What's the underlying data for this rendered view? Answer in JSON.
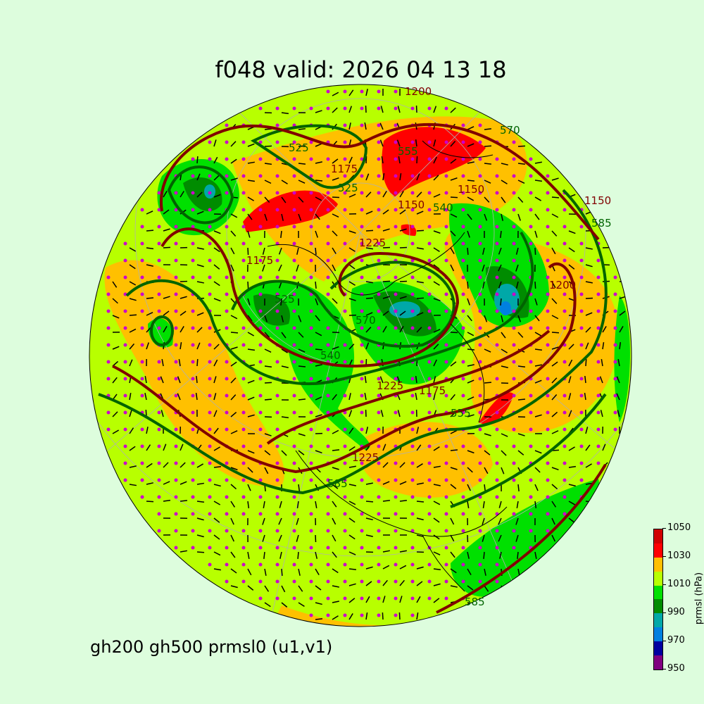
{
  "title": "f048 valid:   2026 04 13 18",
  "subtitle": "gh200 gh500 prmsl0 (u1,v1)",
  "colorbar": {
    "label": "prmsl (hPa)",
    "ticks": [
      "950",
      "970",
      "990",
      "1010",
      "1030",
      "1050"
    ],
    "levels": [
      950,
      960,
      970,
      980,
      990,
      1000,
      1010,
      1020,
      1030,
      1040,
      1050
    ],
    "colors": [
      "#800080",
      "#0000a0",
      "#0080e0",
      "#00a8a8",
      "#008c00",
      "#00e000",
      "#b8ff00",
      "#ffc000",
      "#ff0000",
      "#d00000"
    ]
  },
  "contour_colors": {
    "gh200": "#800000",
    "gh500": "#006400",
    "coastline": "#000000",
    "grid": "#b0b0b0",
    "wind_dots": "#cc00cc"
  },
  "contour_labels": {
    "gh200": [
      "1200",
      "1150",
      "1150",
      "1175",
      "1150",
      "1225",
      "1175",
      "1225",
      "1200",
      "1175",
      "1225"
    ],
    "gh500": [
      "525",
      "525",
      "555",
      "540",
      "525",
      "540",
      "570",
      "585",
      "570",
      "585",
      "555",
      "585"
    ]
  }
}
